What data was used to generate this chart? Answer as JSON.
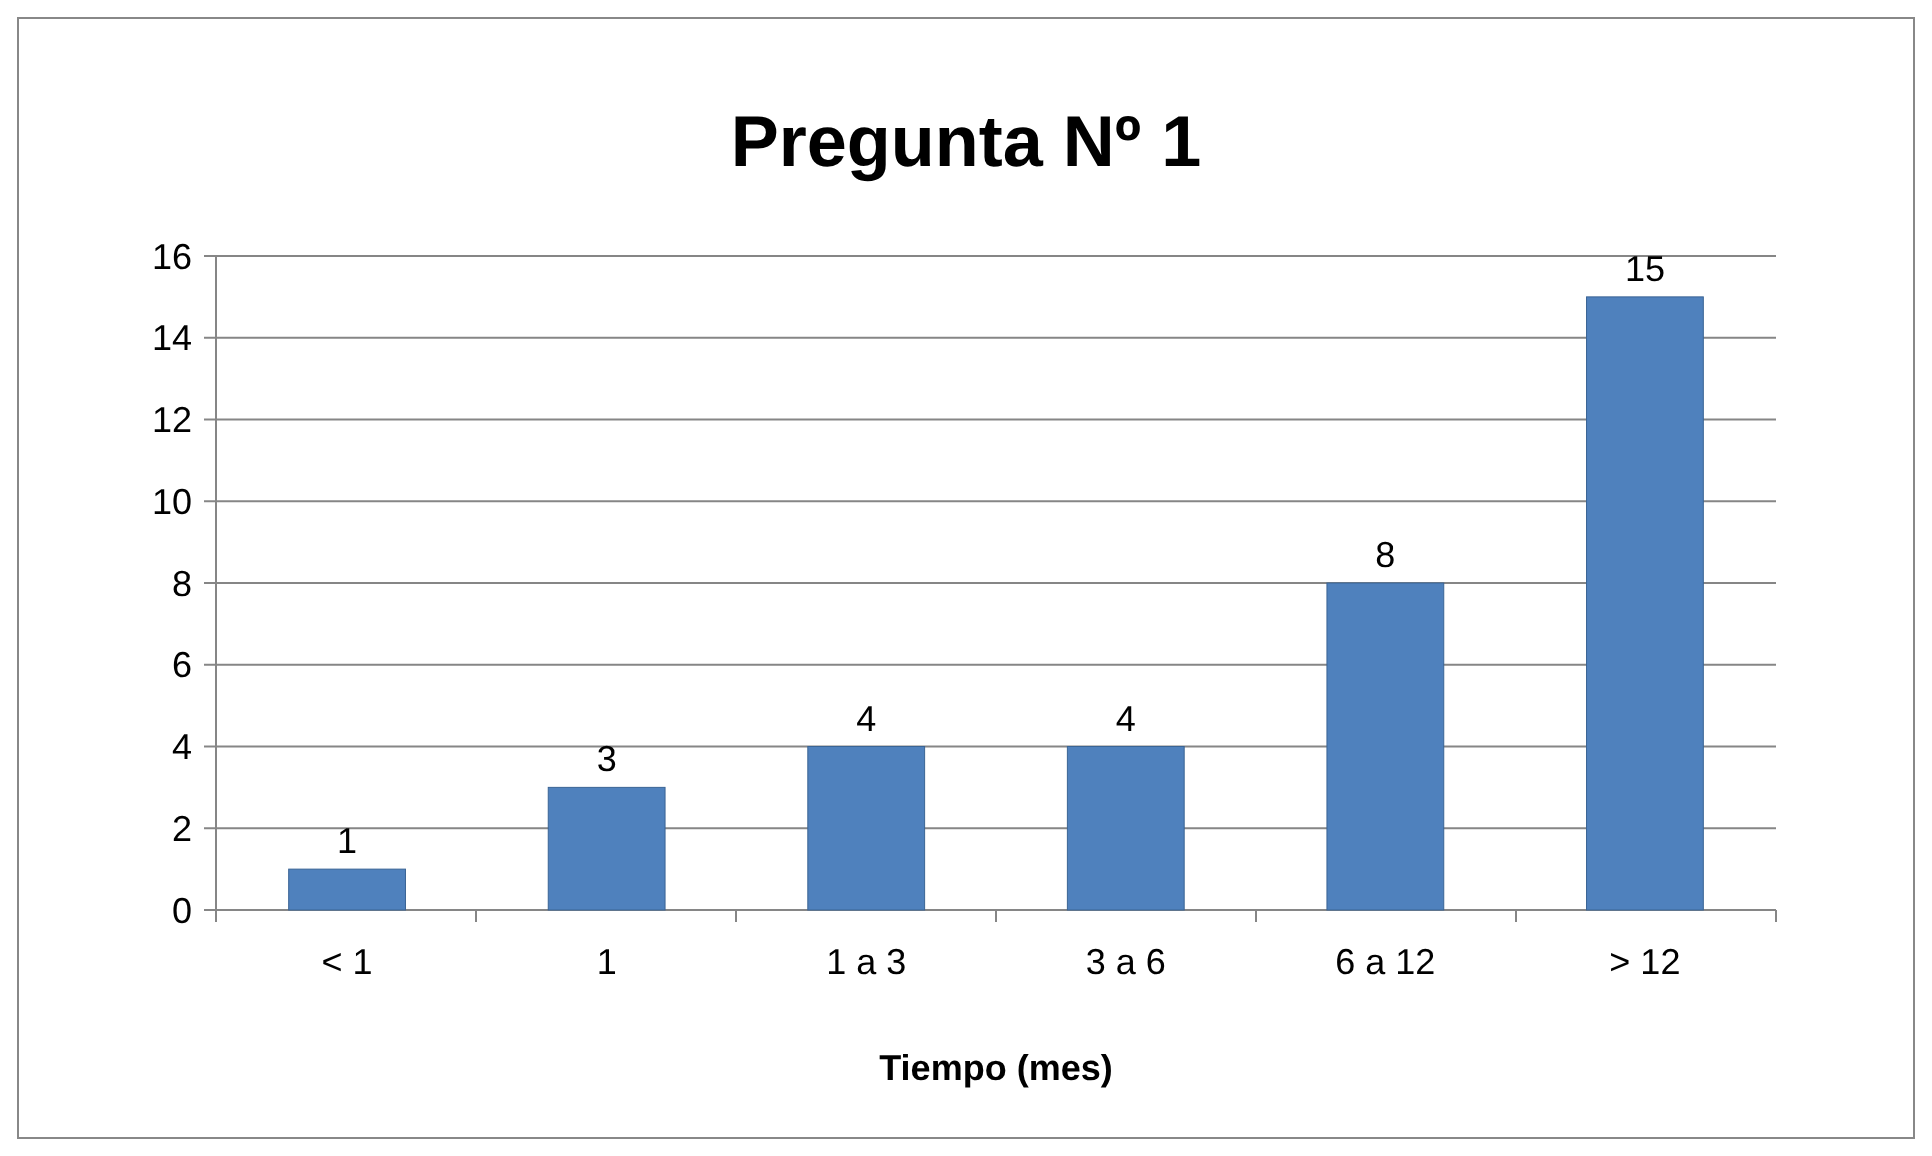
{
  "chart_data": {
    "type": "bar",
    "title": "Pregunta Nº 1",
    "xlabel": "Tiempo (mes)",
    "categories": [
      "< 1",
      "1",
      "1 a 3",
      "3 a 6",
      "6 a 12",
      "> 12"
    ],
    "values": [
      1,
      3,
      4,
      4,
      8,
      15
    ],
    "color": "#4f81bd",
    "ylim": [
      0,
      16
    ],
    "yticks": [
      0,
      2,
      4,
      6,
      8,
      10,
      12,
      14,
      16
    ],
    "grid": "y",
    "data_labels": true
  }
}
